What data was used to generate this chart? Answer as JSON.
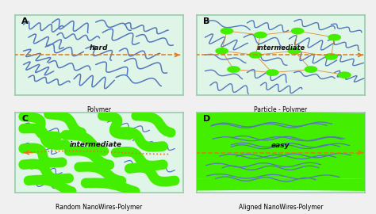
{
  "fig_bg": "#f0f0f0",
  "panel_bg": "#dff5e8",
  "blue": "#5577bb",
  "green": "#44ee00",
  "green_dark": "#22cc00",
  "orange": "#e07818",
  "label_A": "A",
  "label_B": "B",
  "label_C": "C",
  "label_D": "D",
  "title_A": "Polymer",
  "title_B": "Particle - Polymer",
  "title_C": "Random NanoWires-Polymer",
  "title_D": "Aligned NanoWires-Polymer",
  "text_hard": "hard",
  "text_int_B": "intermediate",
  "text_int_C": "intermediate",
  "text_easy": "easy",
  "spine_color": "#99ccaa",
  "panel_lw": 1.2
}
